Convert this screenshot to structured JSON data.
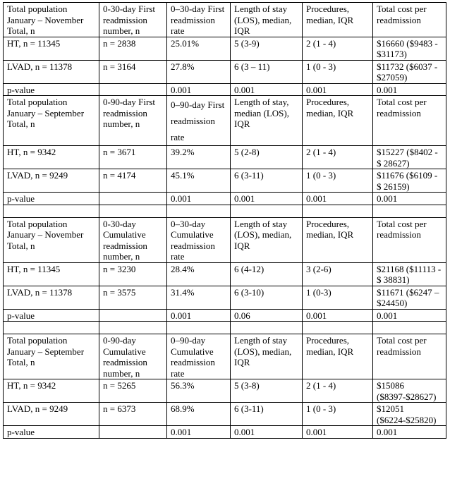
{
  "sections": [
    {
      "header": [
        "Total population January – November Total, n",
        "0-30-day First readmission number, n",
        "0–30-day First readmission rate",
        "Length of stay (LOS), median, IQR",
        "Procedures, median, IQR",
        "Total cost per readmission"
      ],
      "rows": [
        [
          "HT, n = 11345",
          "n = 2838",
          "25.01%",
          "5 (3-9)",
          "2 (1 - 4)",
          "$16660 ($9483 - $31173)"
        ],
        [
          "LVAD, n = 11378",
          "n = 3164",
          "27.8%",
          "6 (3 – 11)",
          "1 (0 - 3)",
          "$11732 ($6037 - $27059)"
        ],
        [
          "p-value",
          "",
          "0.001",
          "0.001",
          "0.001",
          "0.001"
        ]
      ]
    },
    {
      "header": [
        "Total population January – September Total, n",
        "0-90-day First readmission number, n",
        "0–90-day First readmission rate",
        "Length of stay, median (LOS), IQR",
        "Procedures, median, IQR",
        "Total cost per readmission"
      ],
      "rows": [
        [
          "HT, n = 9342",
          "n = 3671",
          "39.2%",
          "5 (2-8)",
          "2 (1 - 4)",
          "$15227 ($8402 - $ 28627)"
        ],
        [
          "LVAD, n = 9249",
          "n = 4174",
          "45.1%",
          "6 (3-11)",
          "1 (0 - 3)",
          "$11676 ($6109 - $ 26159)"
        ],
        [
          "p-value",
          "",
          "0.001",
          "0.001",
          "0.001",
          "0.001"
        ]
      ]
    },
    {
      "header": [
        "Total population January – November Total, n",
        "0-30-day Cumulative readmission number, n",
        "0–30-day Cumulative readmission rate",
        "Length of stay (LOS), median, IQR",
        "Procedures, median, IQR",
        "Total cost per readmission"
      ],
      "rows": [
        [
          "HT, n = 11345",
          "n = 3230",
          "28.4%",
          "6 (4-12)",
          "3 (2-6)",
          "$21168 ($11113 - $ 38831)"
        ],
        [
          "LVAD, n = 11378",
          "n = 3575",
          "31.4%",
          "6 (3-10)",
          "1 (0-3)",
          "$11671 ($6247 – $24450)"
        ],
        [
          "p-value",
          "",
          "0.001",
          "0.06",
          "0.001",
          "0.001"
        ]
      ]
    },
    {
      "header": [
        "Total population January – September Total, n",
        "0-90-day Cumulative readmission number, n",
        "0–90-day Cumulative readmission rate",
        "Length of stay (LOS), median, IQR",
        "Procedures, median, IQR",
        "Total cost per readmission"
      ],
      "rows": [
        [
          "HT, n = 9342",
          "n = 5265",
          "56.3%",
          "5 (3-8)",
          "2 (1 - 4)",
          "$15086 ($8397-$28627)"
        ],
        [
          "LVAD, n = 9249",
          "n = 6373",
          "68.9%",
          "6 (3-11)",
          "1 (0 - 3)",
          "$12051 ($6224-$25820)"
        ],
        [
          "p-value",
          "",
          "0.001",
          "0.001",
          "0.001",
          "0.001"
        ]
      ]
    }
  ]
}
